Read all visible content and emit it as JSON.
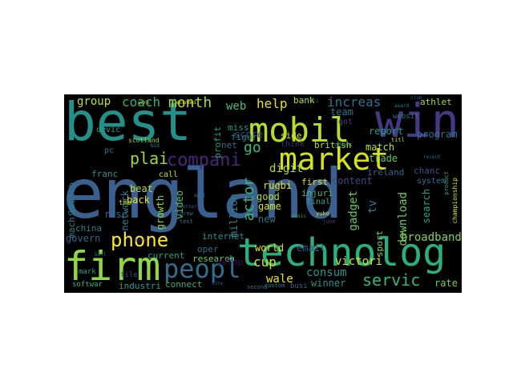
{
  "wordcloud": {
    "words": [
      {
        "text": "england",
        "color": "#3b5f8f"
      },
      {
        "text": "best",
        "color": "#23908a"
      },
      {
        "text": "win",
        "color": "#443a83"
      },
      {
        "text": "mobil",
        "color": "#b4dd2c"
      },
      {
        "text": "market",
        "color": "#d4e21a"
      },
      {
        "text": "technolog",
        "color": "#2ab07f"
      },
      {
        "text": "firm",
        "color": "#8fd744"
      },
      {
        "text": "peopl",
        "color": "#2e6e8e"
      },
      {
        "text": "phone",
        "color": "#fde725"
      },
      {
        "text": "servic",
        "color": "#35b779"
      },
      {
        "text": "compani",
        "color": "#482677"
      },
      {
        "text": "coach",
        "color": "#2db27d"
      },
      {
        "text": "plai",
        "color": "#9bd93c"
      },
      {
        "text": "month",
        "color": "#a5db36"
      },
      {
        "text": "web",
        "color": "#4ac16d"
      },
      {
        "text": "help",
        "color": "#dfe318"
      },
      {
        "text": "increas",
        "color": "#2c728e"
      },
      {
        "text": "group",
        "color": "#c2df23"
      },
      {
        "text": "go",
        "color": "#3bbb75"
      },
      {
        "text": "cup",
        "color": "#d5e21a"
      },
      {
        "text": "actor",
        "color": "#32b67a"
      },
      {
        "text": "wale",
        "color": "#f1e51d"
      },
      {
        "text": "consum",
        "color": "#1f988b"
      },
      {
        "text": "winner",
        "color": "#21918c"
      },
      {
        "text": "tv",
        "color": "#2a778e"
      },
      {
        "text": "report",
        "color": "#1e9c89"
      },
      {
        "text": "program",
        "color": "#2c738e"
      },
      {
        "text": "match",
        "color": "#bddf26"
      },
      {
        "text": "trade",
        "color": "#5ec962"
      },
      {
        "text": "athlet",
        "color": "#addc30"
      },
      {
        "text": "download",
        "color": "#6ccd5a"
      },
      {
        "text": "broadband",
        "color": "#83d34b"
      },
      {
        "text": "rate",
        "color": "#7ad151"
      },
      {
        "text": "search",
        "color": "#1f9e89"
      },
      {
        "text": "digit",
        "color": "#b5de2b"
      },
      {
        "text": "gadget",
        "color": "#63cb5f"
      },
      {
        "text": "victori",
        "color": "#d8e219"
      },
      {
        "text": "world",
        "color": "#e7e419"
      },
      {
        "text": "email",
        "color": "#38588c"
      },
      {
        "text": "govern",
        "color": "#33638d"
      },
      {
        "text": "video",
        "color": "#4ec36b"
      },
      {
        "text": "growth",
        "color": "#8bd646"
      },
      {
        "text": "network",
        "color": "#27808e"
      },
      {
        "text": "rise",
        "color": "#31688e"
      },
      {
        "text": "beat",
        "color": "#b8de29"
      },
      {
        "text": "back",
        "color": "#e2e418"
      },
      {
        "text": "franc",
        "color": "#1f948c"
      },
      {
        "text": "launch",
        "color": "#277f8e"
      },
      {
        "text": "machin",
        "color": "#25838e"
      },
      {
        "text": "china",
        "color": "#24868e"
      },
      {
        "text": "current",
        "color": "#20a386"
      },
      {
        "text": "research",
        "color": "#67cc5c"
      },
      {
        "text": "connect",
        "color": "#29af7f"
      },
      {
        "text": "industri",
        "color": "#1fa088"
      },
      {
        "text": "europ",
        "color": "#46075a"
      },
      {
        "text": "million",
        "color": "#26828e"
      },
      {
        "text": "internet",
        "color": "#20928c"
      },
      {
        "text": "oper",
        "color": "#2d718e"
      },
      {
        "text": "game",
        "color": "#d2e21b"
      },
      {
        "text": "new",
        "color": "#2b758e"
      },
      {
        "text": "good",
        "color": "#b0dd2f"
      },
      {
        "text": "rugbi",
        "color": "#e5e419"
      },
      {
        "text": "content",
        "color": "#3f4889"
      },
      {
        "text": "first",
        "color": "#dde318"
      },
      {
        "text": "british",
        "color": "#c0df25"
      },
      {
        "text": "team",
        "color": "#2a768e"
      },
      {
        "text": "bank",
        "color": "#bade28"
      },
      {
        "text": "score",
        "color": "#3e4989"
      },
      {
        "text": "side",
        "color": "#d1e11c"
      },
      {
        "text": "miss",
        "color": "#1e9b8a"
      },
      {
        "text": "figur",
        "color": "#24878e"
      },
      {
        "text": "profit",
        "color": "#1f9f88"
      },
      {
        "text": "net",
        "color": "#2f6c8e"
      },
      {
        "text": "sport",
        "color": "#7fd34e"
      },
      {
        "text": "chanc",
        "color": "#3c4f8a"
      },
      {
        "text": "system",
        "color": "#2e6f8e"
      },
      {
        "text": "ireland",
        "color": "#34618d"
      },
      {
        "text": "injuri",
        "color": "#42be71"
      },
      {
        "text": "think",
        "color": "#472c7a"
      },
      {
        "text": "devic",
        "color": "#21a685"
      },
      {
        "text": "pc",
        "color": "#2b748e"
      },
      {
        "text": "call",
        "color": "#c8e020"
      },
      {
        "text": "tmo",
        "color": "#bfdf25"
      },
      {
        "text": "got",
        "color": "#433d84"
      },
      {
        "text": "websit",
        "color": "#2d708e"
      },
      {
        "text": "final",
        "color": "#25ac82"
      },
      {
        "text": "mark",
        "color": "#1fa088"
      },
      {
        "text": "softwar",
        "color": "#31b57b"
      },
      {
        "text": "file",
        "color": "#3f4788"
      },
      {
        "text": "busi",
        "color": "#31678e"
      },
      {
        "text": "scotland",
        "color": "#9dd93b"
      },
      {
        "text": "economi",
        "color": "#fde725"
      },
      {
        "text": "custom",
        "color": "#26818e"
      },
      {
        "text": "second",
        "color": "#2c728e"
      },
      {
        "text": "championship",
        "color": "#d0e11c"
      },
      {
        "text": "product",
        "color": "#22a785"
      },
      {
        "text": "award",
        "color": "#2a788e"
      },
      {
        "text": "titl",
        "color": "#bade28"
      },
      {
        "text": "athen",
        "color": "#1fa188"
      },
      {
        "text": "yuko",
        "color": "#c5e021"
      },
      {
        "text": "june",
        "color": "#453781"
      },
      {
        "text": "music",
        "color": "#27ad81"
      },
      {
        "text": "offici",
        "color": "#2e6e8e"
      },
      {
        "text": "work",
        "color": "#c2df23"
      },
      {
        "text": "site",
        "color": "#3a538b"
      },
      {
        "text": "test",
        "color": "#2a788e"
      },
      {
        "text": "grew",
        "color": "#35608d"
      },
      {
        "text": "better",
        "color": "#38598c"
      },
      {
        "text": "club",
        "color": "#32648e"
      },
      {
        "text": "bid",
        "color": "#1f948c"
      },
      {
        "text": "appl",
        "color": "#2c728e"
      },
      {
        "text": "recent",
        "color": "#34618d"
      },
      {
        "text": "move",
        "color": "#443983"
      },
      {
        "text": "ball",
        "color": "#2b748e"
      }
    ]
  }
}
